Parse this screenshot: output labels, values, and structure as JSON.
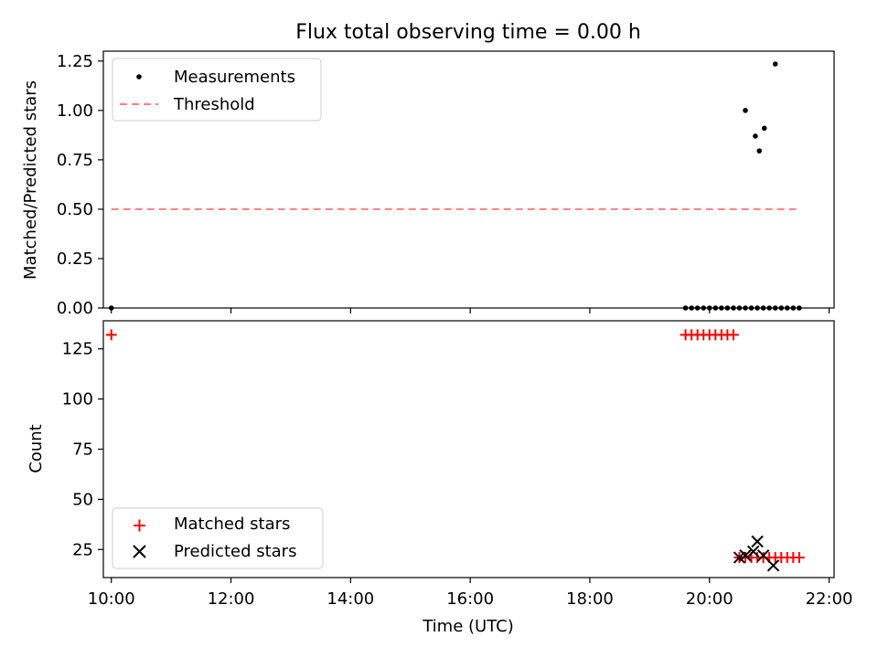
{
  "chart_data": [
    {
      "type": "scatter",
      "title": "Flux total observing time = 0.00 h",
      "xlabel": "",
      "ylabel": "Matched/Predicted stars",
      "ylim": [
        0.0,
        1.3
      ],
      "yticks": [
        "0.00",
        "0.25",
        "0.50",
        "0.75",
        "1.00",
        "1.25"
      ],
      "ytick_values": [
        0.0,
        0.25,
        0.5,
        0.75,
        1.0,
        1.25
      ],
      "xlim": [
        "09:52",
        "22:05"
      ],
      "legend_position": "upper-left",
      "series": [
        {
          "name": "Measurements",
          "marker": "dot",
          "color": "#000000",
          "x": [
            "10:00",
            "19:36",
            "19:42",
            "19:48",
            "19:54",
            "20:00",
            "20:06",
            "20:12",
            "20:18",
            "20:24",
            "20:30",
            "20:36",
            "20:42",
            "20:48",
            "20:54",
            "21:00",
            "21:06",
            "21:12",
            "21:18",
            "21:24",
            "21:30",
            "20:36",
            "20:46",
            "20:50",
            "20:55",
            "21:06"
          ],
          "y": [
            0,
            0,
            0,
            0,
            0,
            0,
            0,
            0,
            0,
            0,
            0,
            0,
            0,
            0,
            0,
            0,
            0,
            0,
            0,
            0,
            0,
            1.0,
            0.87,
            0.795,
            0.91,
            1.235
          ]
        },
        {
          "name": "Threshold",
          "style": "dashed",
          "color": "#ff7f7f",
          "x": [
            "10:00",
            "21:30"
          ],
          "y": [
            0.5,
            0.5
          ]
        }
      ]
    },
    {
      "type": "scatter",
      "title": "",
      "xlabel": "Time (UTC)",
      "ylabel": "Count",
      "ylim": [
        11,
        139
      ],
      "yticks": [
        "25",
        "50",
        "75",
        "100",
        "125"
      ],
      "ytick_values": [
        25,
        50,
        75,
        100,
        125
      ],
      "xlim": [
        "09:52",
        "22:05"
      ],
      "xticks": [
        "10:00",
        "12:00",
        "14:00",
        "16:00",
        "18:00",
        "20:00",
        "22:00"
      ],
      "legend_position": "lower-left",
      "series": [
        {
          "name": "Matched stars",
          "marker": "plus",
          "color": "#ff0000",
          "x": [
            "10:00",
            "19:36",
            "19:42",
            "19:48",
            "19:54",
            "20:00",
            "20:06",
            "20:12",
            "20:18",
            "20:24",
            "20:30",
            "20:36",
            "20:42",
            "20:48",
            "20:54",
            "21:00",
            "21:06",
            "21:12",
            "21:18",
            "21:24",
            "21:30"
          ],
          "y": [
            132,
            132,
            132,
            132,
            132,
            132,
            132,
            132,
            132,
            132,
            21,
            21,
            21,
            21,
            21,
            21,
            21,
            21,
            21,
            21,
            21
          ]
        },
        {
          "name": "Predicted stars",
          "marker": "x",
          "color": "#000000",
          "x": [
            "20:30",
            "20:36",
            "20:44",
            "20:48",
            "20:54",
            "21:04"
          ],
          "y": [
            21,
            22,
            24,
            29,
            22,
            17
          ]
        }
      ]
    }
  ]
}
